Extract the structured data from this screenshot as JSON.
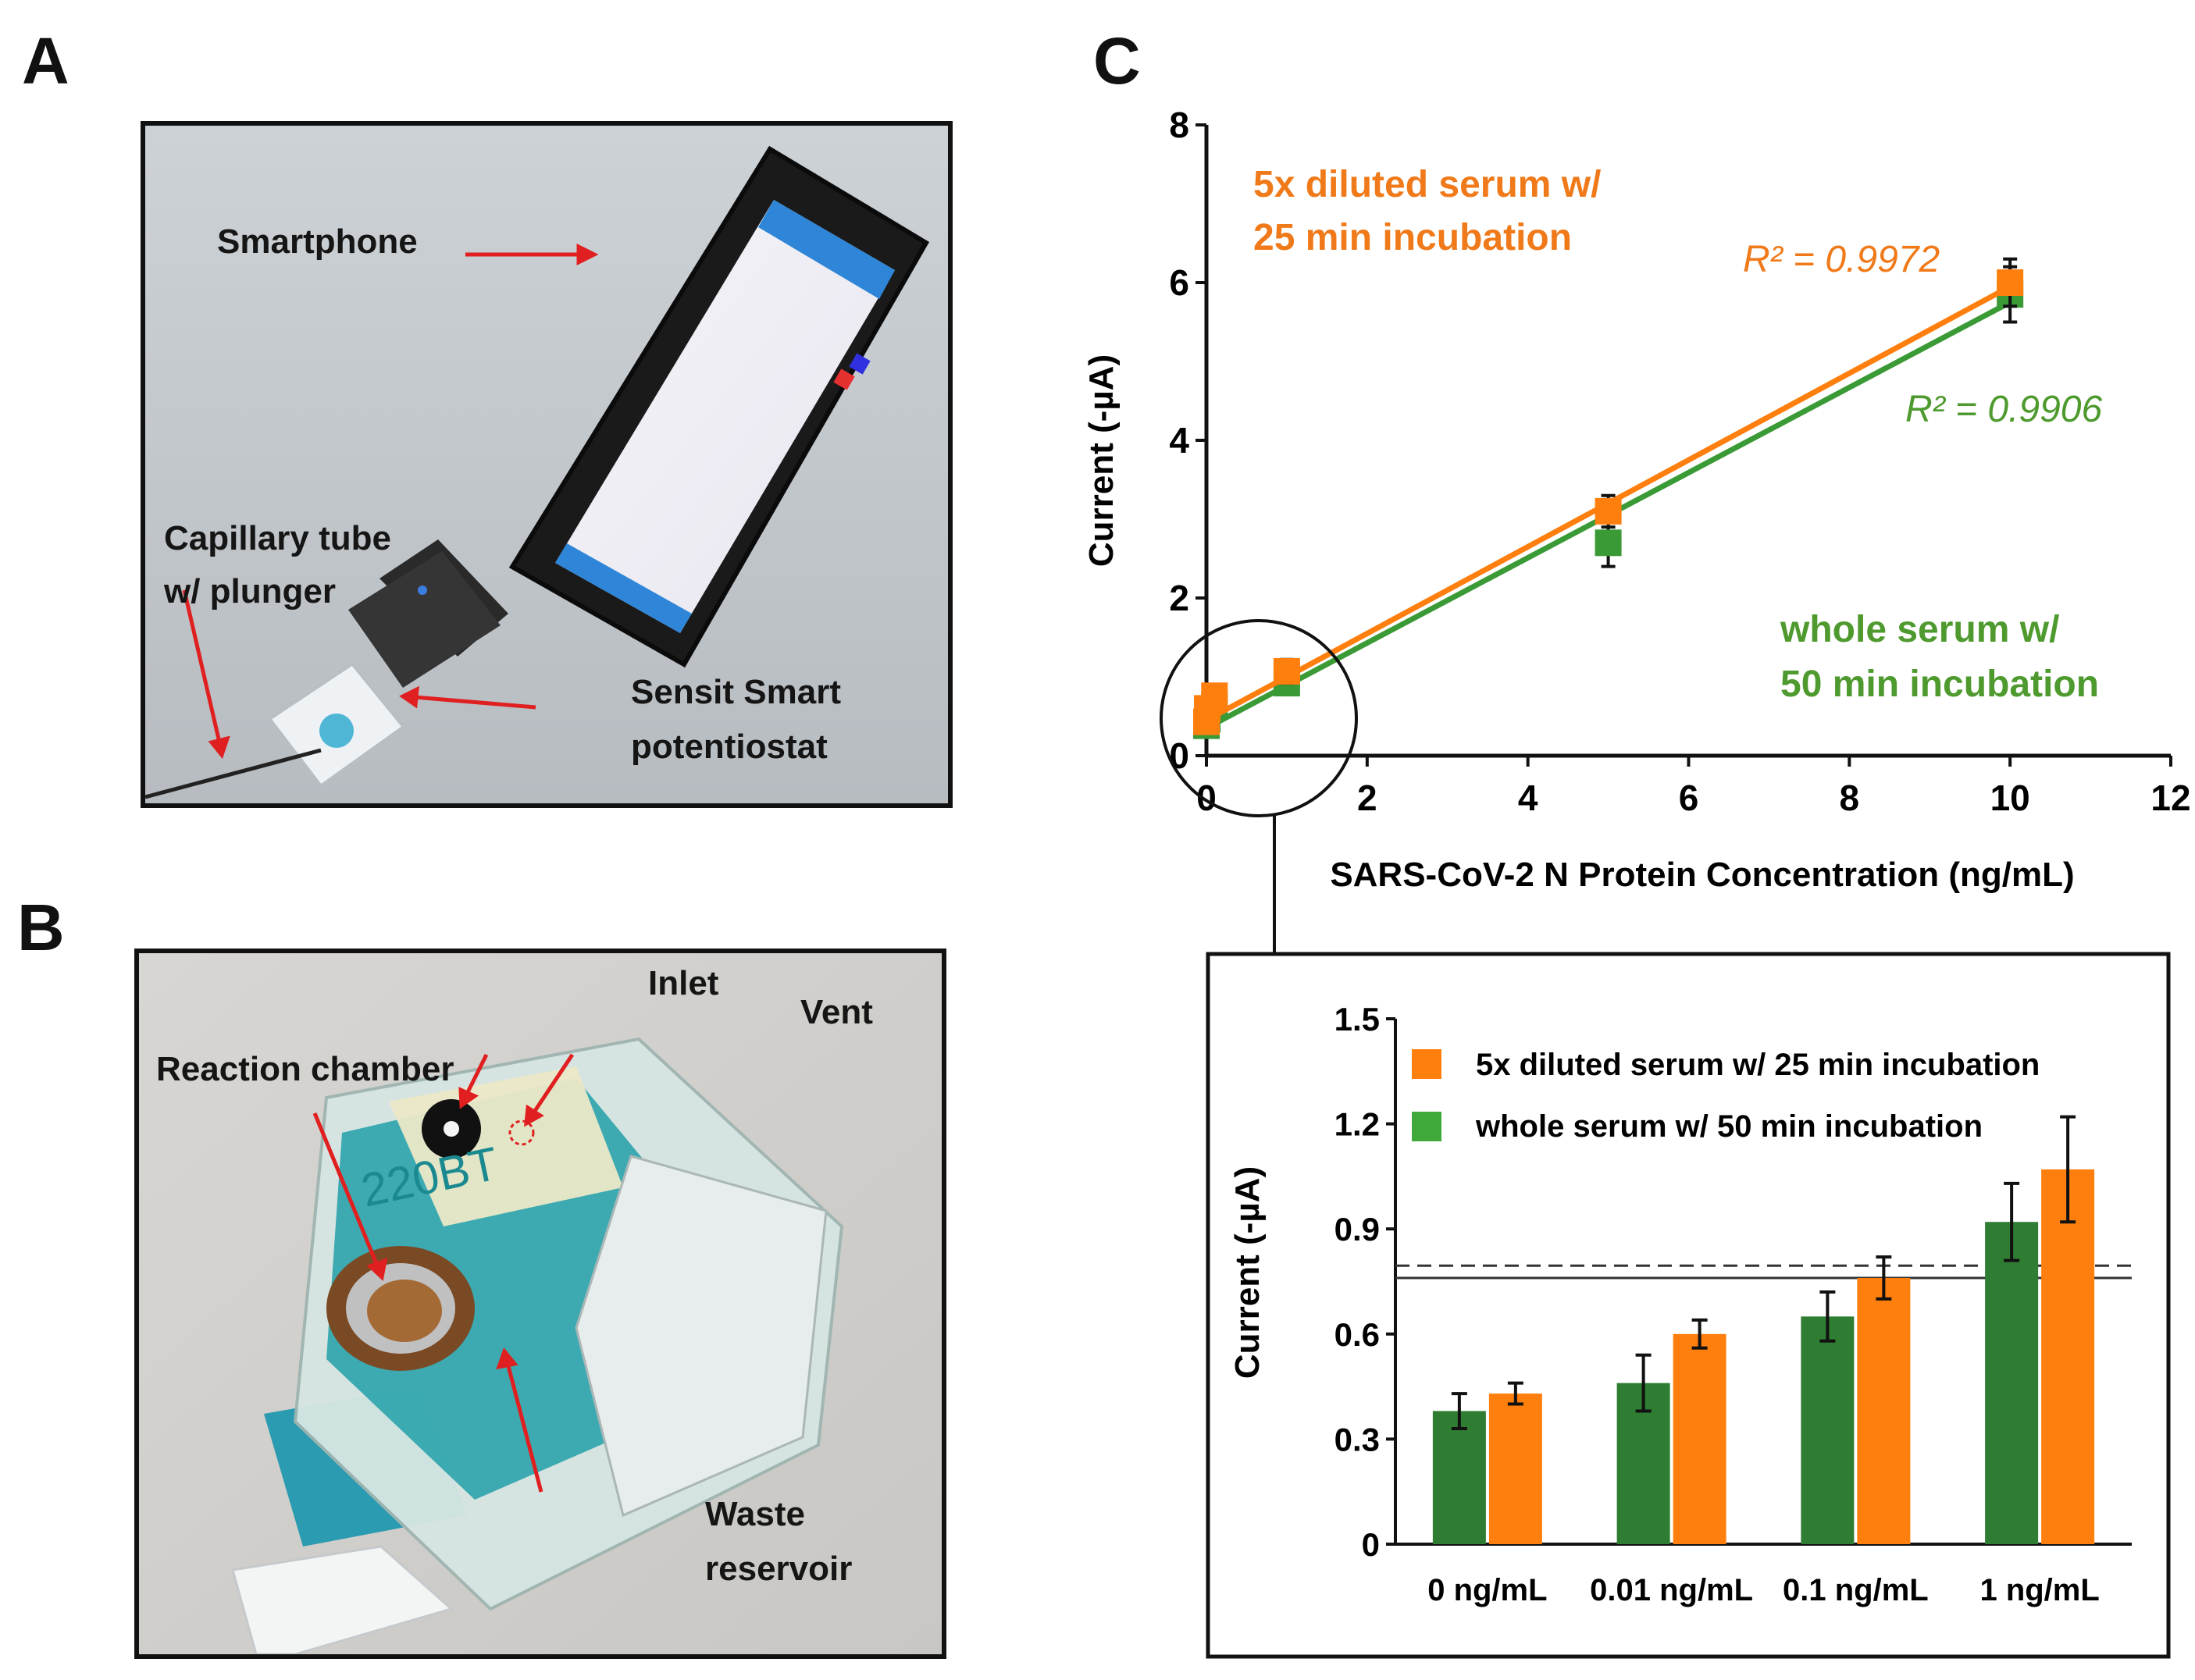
{
  "panels": {
    "a": "A",
    "b": "B",
    "c": "C"
  },
  "panel_a": {
    "smartphone": "Smartphone",
    "capillary_line1": "Capillary tube",
    "capillary_line2": "w/ plunger",
    "sensit_line1": "Sensit Smart",
    "sensit_line2": "potentiostat"
  },
  "panel_b": {
    "inlet": "Inlet",
    "vent": "Vent",
    "reaction_chamber": "Reaction chamber",
    "chip_text_top": "220BT",
    "waste_line1": "Waste",
    "waste_line2": "reservoir"
  },
  "colors": {
    "orange": "#FF7F0E",
    "green": "#3A9A35",
    "green_dark": "#2E7D32",
    "orange_text": "#F07A1A",
    "green_text": "#4E9A2E"
  },
  "chart_data": [
    {
      "type": "scatter",
      "title": "",
      "xlabel": "SARS-CoV-2 N Protein Concentration (ng/mL)",
      "ylabel": "Current (-µA)",
      "xlim": [
        0,
        12
      ],
      "ylim": [
        0,
        8
      ],
      "xticks": [
        "0",
        "2",
        "4",
        "6",
        "8",
        "10",
        "12"
      ],
      "yticks": [
        "0",
        "2",
        "4",
        "6",
        "8"
      ],
      "series": [
        {
          "name": "5x diluted serum w/ 25 min incubation",
          "legend_line1": "5x diluted serum w/",
          "legend_line2": "25 min incubation",
          "x": [
            0,
            0.01,
            0.1,
            1,
            5,
            10
          ],
          "y": [
            0.43,
            0.6,
            0.76,
            1.07,
            3.1,
            6.0
          ],
          "err": [
            0.03,
            0.04,
            0.06,
            0.15,
            0.2,
            0.3
          ],
          "fit": {
            "x": [
              0,
              10
            ],
            "y": [
              0.45,
              5.95
            ]
          },
          "r2": "R² = 0.9972"
        },
        {
          "name": "whole serum w/ 50 min incubation",
          "legend_line1": "whole serum w/",
          "legend_line2": "50 min incubation",
          "x": [
            0,
            0.01,
            0.1,
            1,
            5,
            10
          ],
          "y": [
            0.38,
            0.46,
            0.65,
            0.92,
            2.7,
            5.85
          ],
          "err": [
            0.05,
            0.08,
            0.07,
            0.11,
            0.3,
            0.35
          ],
          "fit": {
            "x": [
              0,
              10
            ],
            "y": [
              0.35,
              5.75
            ]
          },
          "r2": "R² = 0.9906"
        }
      ]
    },
    {
      "type": "bar",
      "title": "",
      "xlabel": "",
      "ylabel": "Current (-µA)",
      "ylim": [
        0,
        1.5
      ],
      "yticks": [
        "0",
        "0.3",
        "0.6",
        "0.9",
        "1.2",
        "1.5"
      ],
      "categories": [
        "0 ng/mL",
        "0.01 ng/mL",
        "0.1 ng/mL",
        "1 ng/mL"
      ],
      "series": [
        {
          "name": "whole serum w/ 50 min incubation",
          "values": [
            0.38,
            0.46,
            0.65,
            0.92
          ],
          "errors": [
            0.05,
            0.08,
            0.07,
            0.11
          ]
        },
        {
          "name": "5x diluted serum w/ 25 min incubation",
          "values": [
            0.43,
            0.6,
            0.76,
            1.07
          ],
          "errors": [
            0.03,
            0.04,
            0.06,
            0.15
          ]
        }
      ],
      "reference_lines": [
        {
          "style": "dashed",
          "y": 0.795
        },
        {
          "style": "solid",
          "y": 0.76
        }
      ]
    }
  ]
}
